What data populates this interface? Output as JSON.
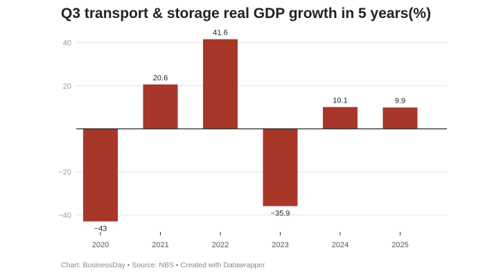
{
  "chart_data": {
    "type": "bar",
    "title": "Q3 transport & storage real GDP growth in 5 years(%)",
    "categories": [
      "2020",
      "2021",
      "2022",
      "2023",
      "2024",
      "2025"
    ],
    "values": [
      -43,
      20.6,
      41.6,
      -35.9,
      10.1,
      9.9
    ],
    "value_labels": [
      "−43",
      "20.6",
      "41.6",
      "−35.9",
      "10.1",
      "9.9"
    ],
    "y_ticks": [
      40,
      20,
      -20,
      -40
    ],
    "y_tick_labels": [
      "40",
      "20",
      "−20",
      "−40"
    ],
    "ylim": [
      -45,
      44
    ],
    "xlabel": "",
    "ylabel": "",
    "grid": true,
    "bar_color": "#a8372a"
  },
  "footer": {
    "text": "Chart: BusinessDay • Source: NBS • Created with Datawrapper"
  }
}
